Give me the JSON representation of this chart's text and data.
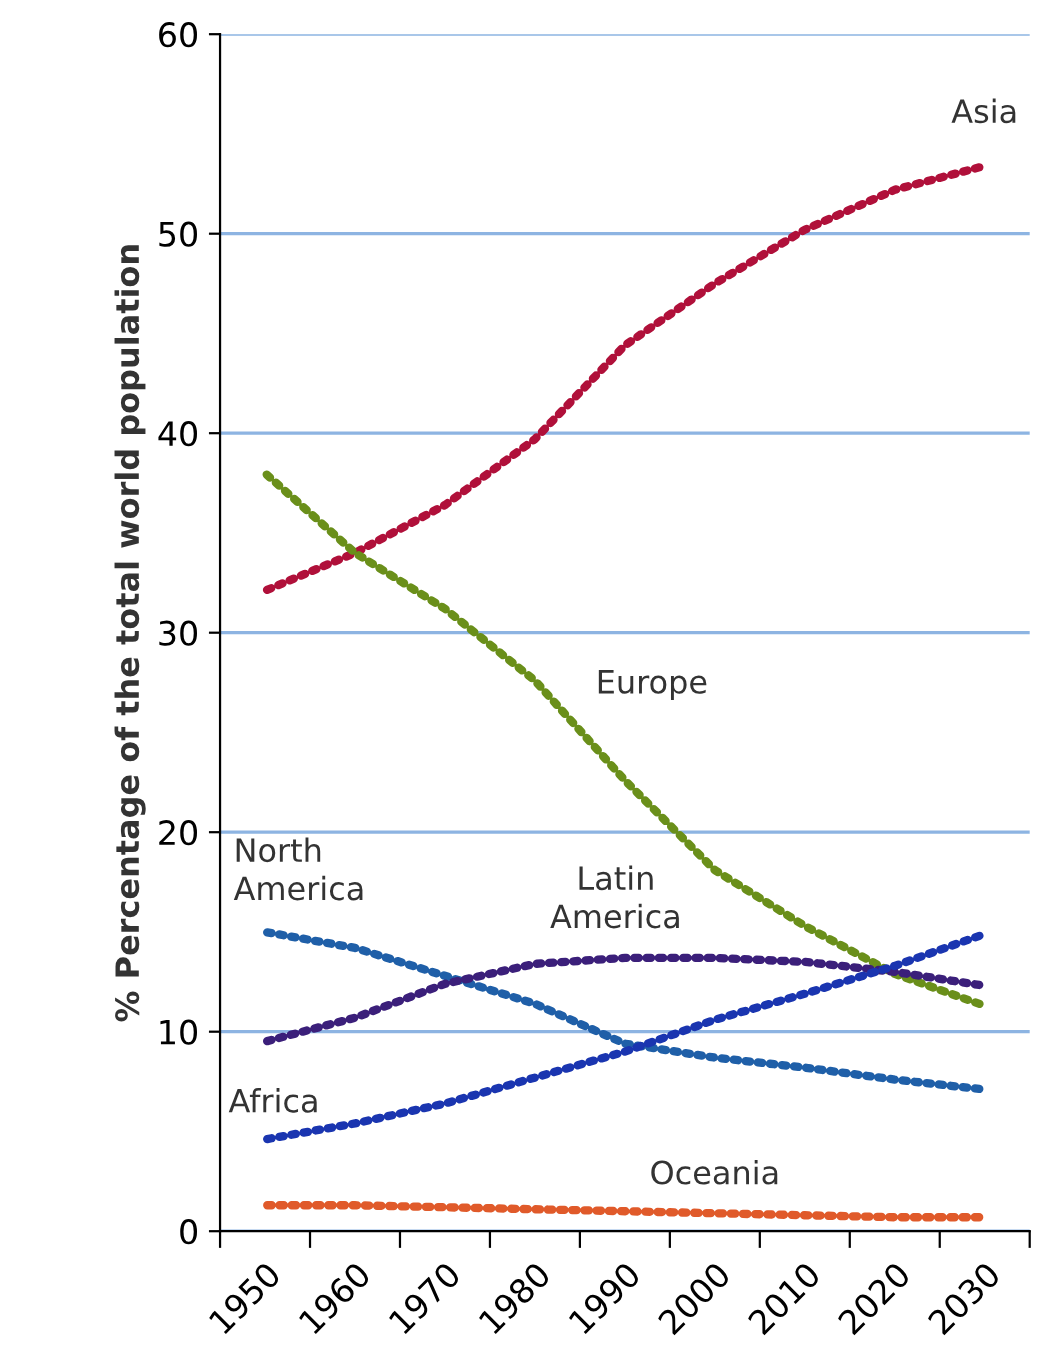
{
  "chart_data": {
    "type": "line",
    "ylabel": "% Percentage of the total world population",
    "x": [
      1950,
      1960,
      1970,
      1980,
      1990,
      2000,
      2010,
      2020,
      2030
    ],
    "series": [
      {
        "name": "Asia",
        "color": "#b0103a",
        "values": [
          32.1,
          34.0,
          36.4,
          39.7,
          44.4,
          47.5,
          50.2,
          52.2,
          53.4
        ]
      },
      {
        "name": "Europe",
        "color": "#6a8f1a",
        "values": [
          38.0,
          34.0,
          31.2,
          27.6,
          22.6,
          18.1,
          15.3,
          12.9,
          11.3
        ]
      },
      {
        "name": "North America",
        "color": "#1f5fa8",
        "values": [
          15.0,
          14.2,
          12.8,
          11.4,
          9.4,
          8.7,
          8.2,
          7.6,
          7.1
        ]
      },
      {
        "name": "Latin America",
        "color": "#3b1f7a",
        "values": [
          9.5,
          10.7,
          12.4,
          13.4,
          13.7,
          13.7,
          13.5,
          13.0,
          12.3
        ]
      },
      {
        "name": "Africa",
        "color": "#1a35b0",
        "values": [
          4.6,
          5.4,
          6.4,
          7.7,
          9.0,
          10.6,
          11.9,
          13.3,
          14.9
        ]
      },
      {
        "name": "Oceania",
        "color": "#e05a2a",
        "values": [
          1.3,
          1.3,
          1.2,
          1.1,
          1.0,
          0.9,
          0.8,
          0.7,
          0.7
        ]
      }
    ],
    "xlim": [
      1945,
      2035
    ],
    "xticks": [
      {
        "value": 1945,
        "label": null
      },
      {
        "value": 1950,
        "label": "1950"
      },
      {
        "value": 1955,
        "label": null
      },
      {
        "value": 1960,
        "label": "1960"
      },
      {
        "value": 1965,
        "label": null
      },
      {
        "value": 1970,
        "label": "1970"
      },
      {
        "value": 1975,
        "label": null
      },
      {
        "value": 1980,
        "label": "1980"
      },
      {
        "value": 1985,
        "label": null
      },
      {
        "value": 1990,
        "label": "1990"
      },
      {
        "value": 1995,
        "label": null
      },
      {
        "value": 2000,
        "label": "2000"
      },
      {
        "value": 2005,
        "label": null
      },
      {
        "value": 2010,
        "label": "2010"
      },
      {
        "value": 2015,
        "label": null
      },
      {
        "value": 2020,
        "label": "2020"
      },
      {
        "value": 2025,
        "label": null
      },
      {
        "value": 2030,
        "label": "2030"
      },
      {
        "value": 2035,
        "label": null
      }
    ],
    "ylim": [
      0,
      60
    ],
    "yticks": [
      0,
      10,
      20,
      30,
      40,
      50,
      60
    ],
    "grid": "y",
    "legend": false,
    "marker": "none",
    "line_style": "dotted"
  }
}
